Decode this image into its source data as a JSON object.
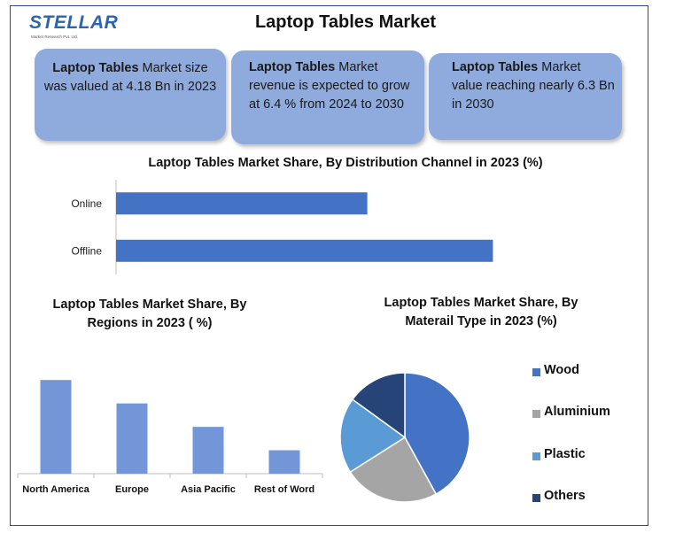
{
  "header": {
    "logo_text": "STELLAR",
    "logo_subtext": "Market Research Pvt. Ltd.",
    "title": "Laptop Tables Market"
  },
  "cards": [
    {
      "bold": "Laptop Tables",
      "text": " Market size was valued at 4.18 Bn in 2023"
    },
    {
      "bold": "Laptop Tables",
      "text": " Market revenue is expected to grow at 6.4 % from 2024 to 2030"
    },
    {
      "bold": "Laptop Tables",
      "text": " Market value reaching nearly 6.3 Bn in 2030"
    }
  ],
  "colors": {
    "card_bg": "#8faadc",
    "bar_primary": "#4472c4",
    "bar_region": "#7396d8",
    "wood": "#4472c4",
    "aluminium": "#a5a5a5",
    "plastic": "#5b9bd5",
    "others": "#264478"
  },
  "chart_data": [
    {
      "type": "bar",
      "orientation": "horizontal",
      "title": "Laptop Tables Market Share, By Distribution Channel in 2023 (%)",
      "categories": [
        "Online",
        "Offline"
      ],
      "values": [
        40,
        60
      ],
      "xlim": [
        0,
        100
      ],
      "grid": false
    },
    {
      "type": "bar",
      "title": "Laptop Tables Market Share, By Regions in 2023 ( %)",
      "categories": [
        "North America",
        "Europe",
        "Asia Pacific",
        "Rest of Word"
      ],
      "values": [
        40,
        30,
        20,
        10
      ],
      "ylim": [
        0,
        45
      ],
      "grid": false
    },
    {
      "type": "pie",
      "title": "Laptop Tables Market Share, By Materail Type in 2023 (%)",
      "categories": [
        "Wood",
        "Aluminium",
        "Plastic",
        "Others"
      ],
      "values": [
        42,
        24,
        19,
        15
      ],
      "legend": "right"
    }
  ]
}
